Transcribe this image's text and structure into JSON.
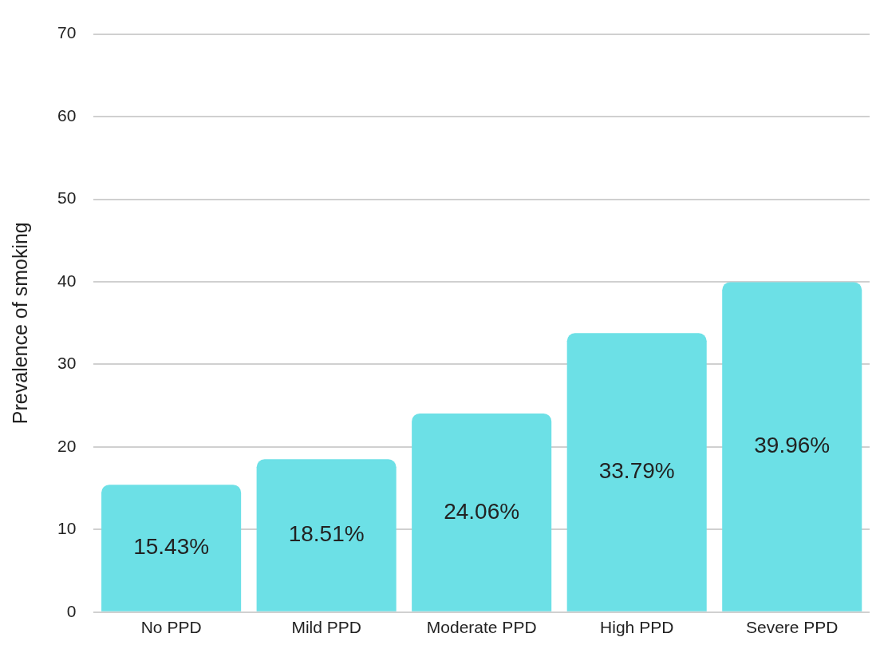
{
  "chart_data": {
    "type": "bar",
    "ylabel": "Prevalence of smoking",
    "categories": [
      "No PPD",
      "Mild PPD",
      "Moderate PPD",
      "High PPD",
      "Severe PPD"
    ],
    "values": [
      15.43,
      18.51,
      24.06,
      33.79,
      39.96
    ],
    "value_labels": [
      "15.43%",
      "18.51%",
      "24.06%",
      "33.79%",
      "39.96%"
    ],
    "color": "#6ce0e6",
    "ylim": [
      0,
      70
    ],
    "yticks": [
      0,
      10,
      20,
      30,
      40,
      50,
      60,
      70
    ],
    "grid": "y",
    "legend": false
  }
}
